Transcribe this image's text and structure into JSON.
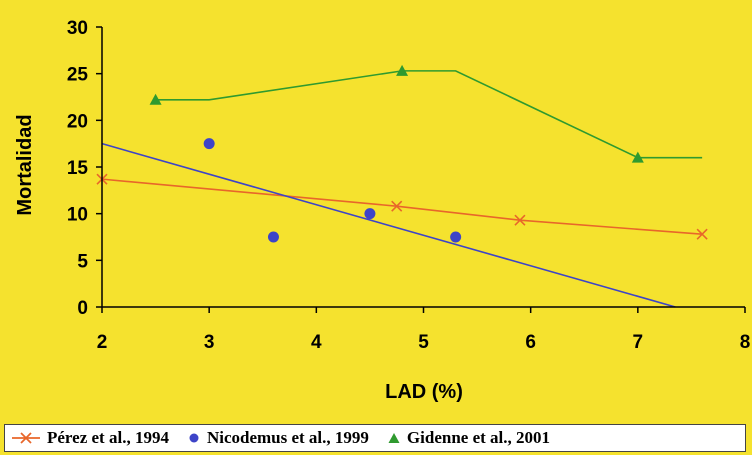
{
  "chart_data": {
    "type": "scatter",
    "title": "",
    "xlabel": "LAD (%)",
    "ylabel": "Mortalidad",
    "xlim": [
      2,
      8
    ],
    "ylim": [
      0,
      30
    ],
    "xticks": [
      2,
      3,
      4,
      5,
      6,
      7,
      8
    ],
    "yticks": [
      0,
      5,
      10,
      15,
      20,
      25,
      30
    ],
    "grid": false,
    "legend_position": "bottom",
    "series": [
      {
        "name": "Pérez et al., 1994",
        "marker": "x",
        "color": "#e8662a",
        "style": "trend-line",
        "points": [
          [
            2,
            13.7
          ],
          [
            4.75,
            10.8
          ],
          [
            5.9,
            9.3
          ],
          [
            7.6,
            7.8
          ]
        ]
      },
      {
        "name": "Nicodemus et al., 1999",
        "marker": "circle",
        "color": "#3d44c8",
        "style": "points-with-trend",
        "points": [
          [
            3,
            17.5
          ],
          [
            3.6,
            7.5
          ],
          [
            4.5,
            10
          ],
          [
            5.3,
            7.5
          ]
        ],
        "trend": [
          [
            2,
            17.5
          ],
          [
            7.35,
            0
          ]
        ]
      },
      {
        "name": "Gidenne et al., 2001",
        "marker": "triangle",
        "color": "#2f9a2f",
        "style": "line",
        "points": [
          [
            2.5,
            22.2
          ],
          [
            3,
            22.2
          ],
          [
            4.8,
            25.3
          ],
          [
            5.3,
            25.3
          ],
          [
            7,
            16
          ],
          [
            7.6,
            16
          ]
        ],
        "markers_at": [
          [
            2.5,
            22.2
          ],
          [
            4.8,
            25.3
          ],
          [
            7,
            16
          ]
        ]
      }
    ]
  }
}
